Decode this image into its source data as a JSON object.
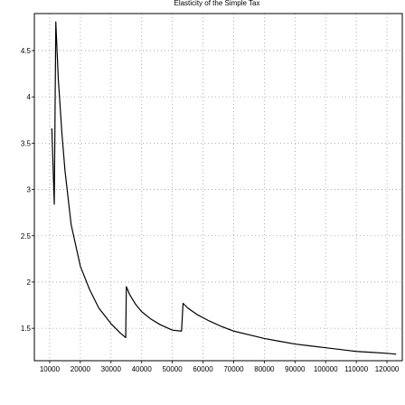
{
  "chart_data": {
    "type": "line",
    "title": "Elasticity of the Simple Tax",
    "xlabel": "",
    "ylabel": "",
    "xlim": [
      5000,
      125000
    ],
    "ylim": [
      1.15,
      4.9
    ],
    "grid": true,
    "legend": "none",
    "x_ticks": [
      10000,
      20000,
      30000,
      40000,
      50000,
      60000,
      70000,
      80000,
      90000,
      100000,
      110000,
      120000
    ],
    "x_tick_labels": [
      "10000",
      "20000",
      "30000",
      "40000",
      "50000",
      "60000",
      "70000",
      "80000",
      "90000",
      "100000",
      "110000",
      "120000"
    ],
    "y_ticks": [
      1.5,
      2,
      2.5,
      3,
      3.5,
      4,
      4.5
    ],
    "y_tick_labels": [
      "1.5",
      "2",
      "2.5",
      "3",
      "3.5",
      "4",
      "4.5"
    ],
    "series": [
      {
        "color": "#000000",
        "x": [
          10700,
          11500,
          12000,
          12800,
          14000,
          15000,
          17000,
          20000,
          23000,
          26000,
          30000,
          33000,
          34800,
          35000,
          36000,
          38000,
          40000,
          43000,
          46000,
          50000,
          53000,
          53500,
          55000,
          58000,
          62000,
          66000,
          70000,
          75000,
          80000,
          85000,
          90000,
          95000,
          100000,
          105000,
          110000,
          115000,
          120000,
          123000
        ],
        "y": [
          3.66,
          2.84,
          4.81,
          4.2,
          3.6,
          3.2,
          2.62,
          2.17,
          1.92,
          1.72,
          1.55,
          1.45,
          1.4,
          1.95,
          1.87,
          1.76,
          1.68,
          1.6,
          1.54,
          1.48,
          1.47,
          1.77,
          1.72,
          1.65,
          1.58,
          1.52,
          1.47,
          1.43,
          1.39,
          1.36,
          1.33,
          1.31,
          1.29,
          1.27,
          1.25,
          1.24,
          1.23,
          1.22
        ]
      }
    ]
  }
}
